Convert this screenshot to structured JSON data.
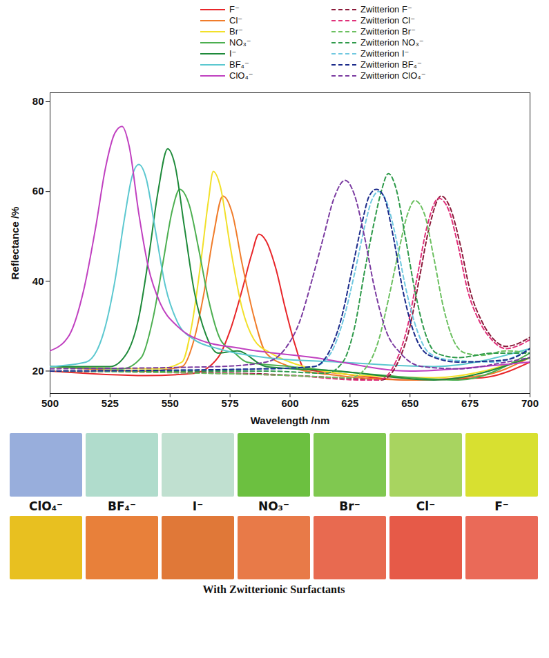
{
  "chart_data": {
    "type": "line",
    "x_label": "Wavelength /nm",
    "y_label": "Reflectance /%",
    "xlim": [
      500,
      700
    ],
    "xticks": [
      500,
      525,
      550,
      575,
      600,
      625,
      650,
      675,
      700
    ],
    "ylim": [
      15,
      82
    ],
    "yticks": [
      20,
      40,
      60,
      80
    ],
    "legend": "top",
    "series": [
      {
        "name": "F⁻",
        "color": "#e8262a",
        "line_style": "solid",
        "x": [
          500,
          540,
          560,
          570,
          575,
          580,
          584,
          587,
          590,
          594,
          598,
          602,
          606,
          620,
          650,
          680,
          700
        ],
        "values": [
          20,
          19,
          19.5,
          23,
          29,
          38,
          46,
          50.5,
          49,
          43,
          34,
          26,
          20.5,
          19.5,
          18,
          18.5,
          22
        ]
      },
      {
        "name": "Cl⁻",
        "color": "#f07c2a",
        "line_style": "solid",
        "x": [
          500,
          540,
          555,
          560,
          564,
          568,
          572,
          576,
          580,
          585,
          590,
          600,
          620,
          650,
          680,
          700
        ],
        "values": [
          21,
          20,
          21,
          27,
          37,
          50,
          59,
          55,
          44,
          32,
          24,
          21,
          19,
          18,
          19,
          23
        ]
      },
      {
        "name": "Br⁻",
        "color": "#f2e02a",
        "line_style": "solid",
        "x": [
          500,
          545,
          555,
          559,
          563,
          566,
          568,
          571,
          575,
          580,
          585,
          592,
          600,
          630,
          660,
          700
        ],
        "values": [
          21,
          20.5,
          22,
          30,
          45,
          58,
          64.5,
          61,
          48,
          34,
          27,
          24,
          22,
          19,
          18.5,
          23
        ]
      },
      {
        "name": "NO₃⁻",
        "color": "#4caf50",
        "line_style": "solid",
        "x": [
          500,
          530,
          538,
          543,
          547,
          551,
          554,
          558,
          562,
          566,
          571,
          576,
          582,
          600,
          640,
          670,
          700
        ],
        "values": [
          21,
          20.5,
          23,
          32,
          44,
          56,
          60.5,
          57,
          47,
          36,
          27,
          24.5,
          22,
          21,
          19,
          18,
          24
        ]
      },
      {
        "name": "I⁻",
        "color": "#1e8a3a",
        "line_style": "solid",
        "x": [
          500,
          525,
          532,
          537,
          541,
          545,
          549,
          552,
          556,
          560,
          565,
          570,
          578,
          590,
          620,
          660,
          700
        ],
        "values": [
          21,
          21,
          24,
          32,
          45,
          60,
          69.5,
          66,
          52,
          38,
          28,
          24,
          24.5,
          21,
          20,
          18,
          23
        ]
      },
      {
        "name": "BF₄⁻",
        "color": "#5cc8d0",
        "line_style": "solid",
        "x": [
          500,
          515,
          522,
          527,
          531,
          534,
          537,
          540,
          544,
          548,
          553,
          560,
          570,
          590,
          620,
          660,
          700
        ],
        "values": [
          21,
          22,
          28,
          40,
          54,
          63,
          66,
          63,
          51,
          39,
          31,
          27,
          25,
          23,
          22,
          21,
          25
        ]
      },
      {
        "name": "ClO₄⁻",
        "color": "#c040c0",
        "line_style": "solid",
        "x": [
          500,
          508,
          514,
          519,
          523,
          527,
          530,
          533,
          537,
          541,
          546,
          553,
          562,
          580,
          610,
          650,
          680,
          700
        ],
        "values": [
          24.5,
          28,
          38,
          52,
          65,
          73,
          74.5,
          70,
          55,
          43,
          35,
          30,
          27,
          25,
          23,
          20,
          21,
          22
        ]
      },
      {
        "name": "Zwitterion F⁻",
        "color": "#8b1a3a",
        "line_style": "dashed",
        "x": [
          500,
          580,
          620,
          638,
          645,
          650,
          654,
          658,
          663,
          667,
          671,
          675,
          680,
          685,
          690,
          700
        ],
        "values": [
          20,
          19.5,
          18.5,
          18,
          22,
          30,
          41,
          52,
          59,
          56,
          48,
          38,
          31,
          27,
          25.5,
          27.5
        ]
      },
      {
        "name": "Zwitterion Cl⁻",
        "color": "#e0307a",
        "line_style": "dashed",
        "x": [
          500,
          600,
          630,
          637,
          644,
          649,
          653,
          657,
          662,
          666,
          670,
          674,
          679,
          684,
          690,
          700
        ],
        "values": [
          20,
          19,
          18,
          18,
          22,
          30,
          41,
          52,
          58.5,
          56,
          48,
          38,
          31,
          27,
          25,
          27
        ]
      },
      {
        "name": "Zwitterion Br⁻",
        "color": "#6cc060",
        "line_style": "dashed",
        "x": [
          500,
          600,
          625,
          632,
          637,
          641,
          645,
          649,
          652,
          656,
          660,
          664,
          668,
          673,
          680,
          690,
          700
        ],
        "values": [
          20,
          19,
          18.5,
          21,
          27,
          36,
          46,
          55,
          58,
          55,
          45,
          34,
          27,
          24,
          23.5,
          24.5,
          24
        ]
      },
      {
        "name": "Zwitterion NO₃⁻",
        "color": "#2e9a4a",
        "line_style": "dashed",
        "x": [
          500,
          590,
          615,
          622,
          627,
          631,
          635,
          638,
          641,
          644,
          648,
          652,
          656,
          661,
          670,
          685,
          700
        ],
        "values": [
          20,
          20,
          19.5,
          22,
          30,
          42,
          53,
          60,
          64,
          61,
          50,
          38,
          29,
          24,
          23,
          24,
          24
        ]
      },
      {
        "name": "Zwitterion I⁻",
        "color": "#70c8e0",
        "line_style": "dashed",
        "x": [
          500,
          590,
          610,
          617,
          622,
          627,
          631,
          634,
          637,
          640,
          644,
          648,
          653,
          658,
          666,
          685,
          700
        ],
        "values": [
          20,
          20.5,
          21,
          24,
          31,
          42,
          52,
          58,
          60,
          58,
          50,
          39,
          29,
          24,
          22.5,
          22,
          25
        ]
      },
      {
        "name": "Zwitterion BF₄⁻",
        "color": "#1a2a8a",
        "line_style": "dashed",
        "x": [
          500,
          590,
          610,
          616,
          621,
          626,
          630,
          633,
          636,
          639,
          643,
          647,
          652,
          658,
          670,
          690,
          700
        ],
        "values": [
          20,
          20.5,
          21,
          24,
          31,
          43,
          53,
          59,
          60.5,
          59,
          50,
          38,
          28,
          23.5,
          22,
          22.5,
          25
        ]
      },
      {
        "name": "Zwitterion ClO₄⁻",
        "color": "#7a3aa0",
        "line_style": "dashed",
        "x": [
          500,
          570,
          590,
          598,
          604,
          609,
          614,
          618,
          623,
          627,
          631,
          635,
          640,
          646,
          655,
          670,
          690,
          700
        ],
        "values": [
          20.5,
          21,
          22,
          25,
          31,
          40,
          50,
          58,
          62.5,
          59,
          50,
          39,
          29,
          24,
          21,
          20.5,
          22,
          23
        ]
      }
    ]
  },
  "photos": {
    "labels": [
      "ClO₄⁻",
      "BF₄⁻",
      "I⁻",
      "NO₃⁻",
      "Br⁻",
      "Cl⁻",
      "F⁻"
    ],
    "top_row_colors": [
      "#98aedc",
      "#b0dccc",
      "#c0e0d0",
      "#6cc040",
      "#80c850",
      "#a8d460",
      "#d8e030"
    ],
    "bottom_row_colors": [
      "#e8c020",
      "#e8803a",
      "#e07838",
      "#e87a48",
      "#e86a50",
      "#e65a48",
      "#ea6a58"
    ],
    "caption": "With Zwitterionic Surfactants"
  }
}
